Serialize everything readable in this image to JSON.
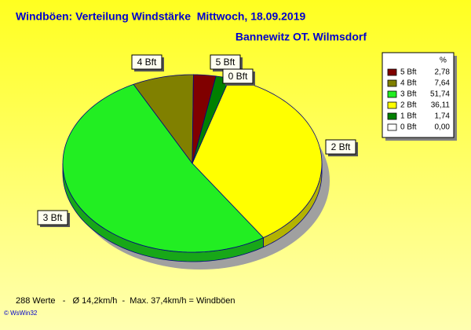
{
  "chart_data": {
    "type": "pie",
    "title": "Windböen: Verteilung Windstärke  Mittwoch, 18.09.2019",
    "subtitle": "Bannewitz OT. Wilmsdorf",
    "legend_header": "%",
    "categories": [
      "5 Bft",
      "4 Bft",
      "3 Bft",
      "2 Bft",
      "1 Bft",
      "0 Bft"
    ],
    "values": [
      2.78,
      7.64,
      51.74,
      36.11,
      1.74,
      0
    ],
    "value_labels": [
      "2,78",
      "7,64",
      "51,74",
      "36,11",
      "1,74",
      "0,00"
    ],
    "colors": [
      "#800000",
      "#808000",
      "#22ee22",
      "#ffff00",
      "#008000",
      "#ffffff"
    ],
    "legend": "top-right"
  },
  "footer": {
    "stats": "288 Werte   -   Ø 14,2km/h  -  Max. 37,4km/h = Windböen",
    "copyright": "© WsWin32"
  }
}
